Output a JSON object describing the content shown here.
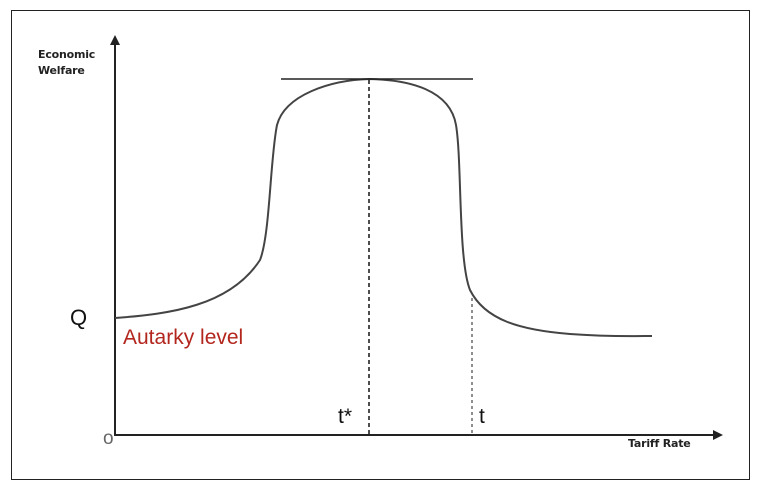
{
  "diagram": {
    "y_axis_label_line1": "Economic",
    "y_axis_label_line2": "Welfare",
    "x_axis_label": "Tariff Rate",
    "origin_label": "o",
    "q_label": "Q",
    "autarky_label": "Autarky level",
    "t_star_label": "t*",
    "t_label": "t"
  },
  "colors": {
    "autarky_text": "#b3261e",
    "lines": "#3a3a3a"
  }
}
